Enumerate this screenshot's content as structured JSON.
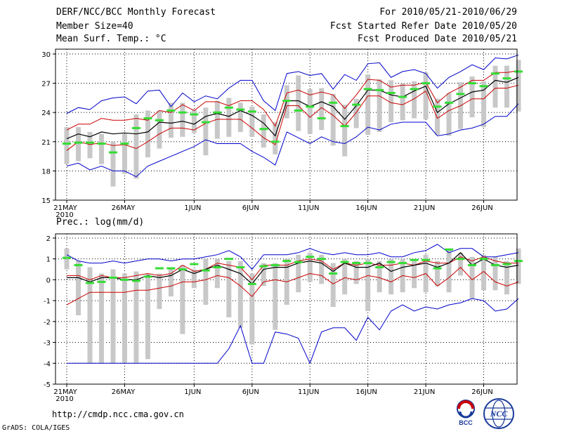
{
  "header": {
    "title": "DERF/NCC/BCC Monthly Forecast",
    "member_size": "Member Size=40",
    "variable": "Mean Surf. Temp.: °C",
    "period": "For 2010/05/21-2010/06/29",
    "started": "Fcst Started Refer Date 2010/05/20",
    "produced": "Fcst Produced Date 2010/05/21"
  },
  "precip_title": "Prec.: log(mm/d)",
  "footer": {
    "url": "http://cmdp.ncc.cma.gov.cn",
    "credit": "GrADS: COLA/IGES"
  },
  "logos": {
    "bcc": "BCC",
    "ncc": "NCC"
  },
  "colors": {
    "max_min": "#0000cc",
    "quartile": "#cc0000",
    "mean": "#000000",
    "median": "#33dd33",
    "box": "#c8c8c8"
  },
  "chart_data": [
    {
      "type": "box",
      "title": "Mean Surf. Temp.: °C",
      "x_tick_labels": [
        "21MAY",
        "26MAY",
        "1JUN",
        "6JUN",
        "11JUN",
        "16JUN",
        "21JUN",
        "26JUN"
      ],
      "x_tick_indices": [
        0,
        5,
        11,
        16,
        21,
        26,
        31,
        36
      ],
      "x_year_label": "2010",
      "y_ticks": [
        15,
        18,
        21,
        24,
        27,
        30
      ],
      "ylim": [
        15,
        30.5
      ],
      "series": [
        {
          "name": "max",
          "values": [
            23.9,
            24.5,
            24.3,
            25.2,
            25.5,
            25.6,
            24.9,
            26.2,
            26.3,
            24.6,
            26.0,
            25.1,
            25.7,
            25.4,
            26.5,
            27.3,
            27.3,
            25.2,
            24.2,
            28.0,
            28.2,
            27.8,
            28.0,
            26.4,
            27.9,
            27.3,
            29.0,
            29.1,
            27.6,
            28.2,
            28.4,
            28.0,
            26.5,
            27.6,
            28.2,
            28.9,
            28.4,
            29.6,
            29.5,
            29.9
          ]
        },
        {
          "name": "q75",
          "values": [
            22.2,
            22.8,
            22.8,
            23.4,
            23.2,
            23.2,
            23.4,
            23.2,
            24.2,
            24.0,
            24.8,
            24.2,
            25.1,
            25.1,
            24.7,
            25.2,
            25.2,
            24.3,
            22.6,
            26.0,
            26.3,
            25.8,
            26.1,
            25.8,
            24.4,
            25.8,
            27.4,
            27.3,
            26.6,
            26.8,
            26.8,
            27.1,
            25.0,
            26.0,
            26.6,
            27.3,
            27.3,
            28.1,
            28.1,
            28.3
          ]
        },
        {
          "name": "mean",
          "values": [
            21.3,
            21.8,
            21.5,
            22.0,
            21.8,
            21.9,
            21.8,
            22.0,
            23.0,
            22.9,
            23.1,
            22.8,
            23.6,
            23.9,
            23.6,
            24.2,
            23.7,
            22.9,
            21.6,
            25.2,
            25.2,
            24.6,
            25.1,
            24.6,
            23.3,
            24.7,
            26.3,
            26.3,
            25.8,
            25.6,
            26.2,
            26.7,
            24.0,
            24.9,
            25.5,
            26.1,
            26.3,
            27.3,
            27.1,
            27.6
          ]
        },
        {
          "name": "q25",
          "values": [
            20.1,
            21.0,
            20.7,
            20.9,
            20.6,
            20.7,
            20.3,
            21.0,
            21.8,
            22.4,
            22.4,
            22.2,
            22.9,
            23.3,
            23.3,
            23.3,
            22.4,
            21.4,
            20.7,
            24.7,
            24.7,
            23.5,
            24.5,
            23.7,
            22.6,
            24.0,
            25.7,
            25.7,
            25.0,
            24.8,
            25.4,
            26.2,
            23.4,
            24.2,
            24.7,
            25.4,
            25.4,
            26.5,
            26.5,
            26.8
          ]
        },
        {
          "name": "min",
          "values": [
            18.5,
            18.8,
            18.1,
            18.5,
            18.0,
            18.0,
            17.4,
            18.5,
            19.0,
            19.5,
            20.0,
            20.5,
            21.2,
            20.8,
            20.8,
            20.8,
            20.0,
            19.4,
            18.6,
            22.0,
            21.4,
            20.8,
            21.5,
            21.0,
            20.8,
            21.5,
            22.5,
            22.2,
            22.8,
            23.0,
            23.0,
            23.0,
            21.6,
            21.8,
            22.2,
            22.4,
            22.8,
            23.6,
            23.6,
            24.9
          ]
        },
        {
          "name": "median",
          "values": [
            20.8,
            20.9,
            20.9,
            20.8,
            19.9,
            20.8,
            22.4,
            23.4,
            23.2,
            24.2,
            24.0,
            23.8,
            23.0,
            24.0,
            24.5,
            24.3,
            24.1,
            22.3,
            21.0,
            25.2,
            24.2,
            24.6,
            23.4,
            25.0,
            22.6,
            24.8,
            26.4,
            26.3,
            26.0,
            25.6,
            26.4,
            27.0,
            24.6,
            25.0,
            25.9,
            27.0,
            26.7,
            28.0,
            27.5,
            28.2
          ]
        },
        {
          "name": "box_top",
          "values": [
            22.5,
            22.5,
            22.0,
            21.8,
            21.0,
            21.8,
            23.8,
            24.2,
            24.2,
            25.0,
            25.0,
            24.3,
            24.5,
            25.2,
            25.5,
            25.0,
            24.6,
            23.8,
            23.0,
            26.8,
            27.8,
            26.4,
            26.5,
            25.9,
            24.8,
            25.4,
            27.9,
            27.4,
            27.3,
            27.0,
            27.2,
            28.1,
            25.4,
            26.0,
            27.1,
            27.7,
            27.2,
            28.8,
            28.8,
            29.4
          ]
        },
        {
          "name": "box_bottom",
          "values": [
            18.7,
            19.0,
            19.3,
            18.7,
            16.4,
            17.7,
            17.2,
            19.4,
            20.3,
            21.4,
            21.5,
            21.9,
            19.6,
            21.3,
            21.5,
            22.0,
            21.5,
            20.4,
            19.7,
            23.4,
            22.1,
            21.8,
            22.2,
            20.6,
            19.5,
            22.4,
            21.7,
            22.0,
            23.0,
            23.2,
            23.4,
            23.3,
            21.7,
            21.6,
            22.3,
            23.5,
            22.5,
            24.5,
            24.5,
            24.1
          ]
        }
      ]
    },
    {
      "type": "box",
      "title": "Prec.: log(mm/d)",
      "x_tick_labels": [
        "21MAY",
        "26MAY",
        "1JUN",
        "6JUN",
        "11JUN",
        "16JUN",
        "21JUN",
        "26JUN"
      ],
      "x_tick_indices": [
        0,
        5,
        11,
        16,
        21,
        26,
        31,
        36
      ],
      "x_year_label": "2010",
      "y_ticks": [
        -5,
        -4,
        -3,
        -2,
        -1,
        0,
        1,
        2
      ],
      "ylim": [
        -5,
        2.2
      ],
      "series": [
        {
          "name": "max",
          "values": [
            1.2,
            0.9,
            0.8,
            0.8,
            0.9,
            0.8,
            0.9,
            1.0,
            1.0,
            0.9,
            1.0,
            1.0,
            1.1,
            1.2,
            1.4,
            1.1,
            0.5,
            1.2,
            1.2,
            1.2,
            1.3,
            1.5,
            1.3,
            1.2,
            1.3,
            1.2,
            1.2,
            1.3,
            1.1,
            1.1,
            1.3,
            1.4,
            1.7,
            1.3,
            1.5,
            1.5,
            1.1,
            1.1,
            1.2,
            1.3
          ]
        },
        {
          "name": "q75",
          "values": [
            0.2,
            0.2,
            0.0,
            0.2,
            0.1,
            0.1,
            0.2,
            0.3,
            0.2,
            0.3,
            0.7,
            0.4,
            0.5,
            0.8,
            0.7,
            0.6,
            0.0,
            0.7,
            0.7,
            0.7,
            0.9,
            1.0,
            0.9,
            0.5,
            0.8,
            0.7,
            0.8,
            0.7,
            0.7,
            0.8,
            0.7,
            0.9,
            0.8,
            0.8,
            1.1,
            0.9,
            1.1,
            0.9,
            0.8,
            0.8
          ]
        },
        {
          "name": "mean",
          "values": [
            0.1,
            0.1,
            -0.1,
            0.1,
            0.1,
            0.0,
            0.0,
            0.2,
            0.1,
            0.2,
            0.5,
            0.3,
            0.5,
            0.7,
            0.5,
            0.3,
            -0.2,
            0.5,
            0.6,
            0.6,
            0.8,
            0.9,
            0.8,
            0.4,
            0.8,
            0.6,
            0.6,
            0.8,
            0.4,
            0.6,
            0.7,
            0.8,
            0.6,
            0.8,
            1.3,
            0.7,
            1.0,
            0.7,
            0.6,
            0.7
          ]
        },
        {
          "name": "q25",
          "values": [
            -1.2,
            -0.9,
            -0.6,
            -0.6,
            -0.6,
            -0.6,
            -0.5,
            -0.5,
            -0.4,
            -0.3,
            -0.1,
            -0.1,
            0.0,
            0.2,
            0.1,
            -0.3,
            -0.8,
            -0.1,
            0.0,
            -0.1,
            0.1,
            0.3,
            0.2,
            -0.2,
            0.1,
            0.0,
            0.2,
            0.1,
            -0.1,
            0.2,
            0.1,
            0.3,
            -0.3,
            0.1,
            0.6,
            0.0,
            0.4,
            -0.1,
            -0.3,
            -0.1
          ]
        },
        {
          "name": "min",
          "values": [
            -4.0,
            -4.0,
            -4.0,
            -4.0,
            -4.0,
            -4.0,
            -4.0,
            -4.0,
            -4.0,
            -4.0,
            -4.0,
            -4.0,
            -4.0,
            -4.0,
            -3.3,
            -2.2,
            -4.0,
            -4.0,
            -2.5,
            -2.6,
            -2.8,
            -4.0,
            -2.5,
            -2.3,
            -2.3,
            -2.9,
            -1.8,
            -2.4,
            -1.5,
            -1.2,
            -1.5,
            -1.3,
            -1.4,
            -1.2,
            -1.1,
            -0.9,
            -1.0,
            -1.5,
            -1.4,
            -0.9
          ]
        },
        {
          "name": "median",
          "values": [
            1.05,
            0.7,
            -0.15,
            -0.1,
            0.1,
            0.0,
            -0.05,
            0.15,
            0.55,
            0.55,
            0.5,
            0.75,
            0.45,
            0.6,
            1.0,
            0.6,
            -0.2,
            0.65,
            0.7,
            0.9,
            0.85,
            1.1,
            1.0,
            0.3,
            0.85,
            0.8,
            0.8,
            0.6,
            0.85,
            0.8,
            0.95,
            0.95,
            0.55,
            1.45,
            1.0,
            0.7,
            1.0,
            0.7,
            0.75,
            0.9
          ]
        },
        {
          "name": "box_top",
          "values": [
            1.5,
            0.9,
            0.6,
            0.3,
            0.5,
            0.3,
            0.4,
            0.3,
            0.3,
            0.5,
            0.7,
            0.5,
            1.0,
            1.0,
            0.9,
            0.9,
            0.3,
            0.8,
            0.8,
            1.0,
            1.2,
            1.3,
            1.2,
            0.8,
            1.0,
            0.9,
            1.0,
            0.9,
            1.0,
            1.0,
            0.9,
            1.2,
            0.9,
            1.5,
            1.3,
            1.1,
            1.2,
            1.1,
            0.9,
            1.5
          ]
        },
        {
          "name": "box_bottom",
          "values": [
            0.5,
            -1.7,
            -4.0,
            -4.0,
            -4.0,
            -4.0,
            -4.0,
            -3.8,
            -1.4,
            -0.8,
            -2.6,
            -0.4,
            -1.2,
            -0.4,
            -1.8,
            -2.3,
            -3.1,
            -0.3,
            -2.4,
            -1.2,
            -0.6,
            -0.1,
            -0.2,
            -1.3,
            -0.7,
            -0.2,
            -1.5,
            -0.6,
            -0.7,
            -0.6,
            -0.4,
            -0.6,
            -0.3,
            -0.6,
            0.2,
            -0.9,
            -0.5,
            -0.5,
            -0.7,
            -0.2
          ]
        }
      ]
    }
  ]
}
